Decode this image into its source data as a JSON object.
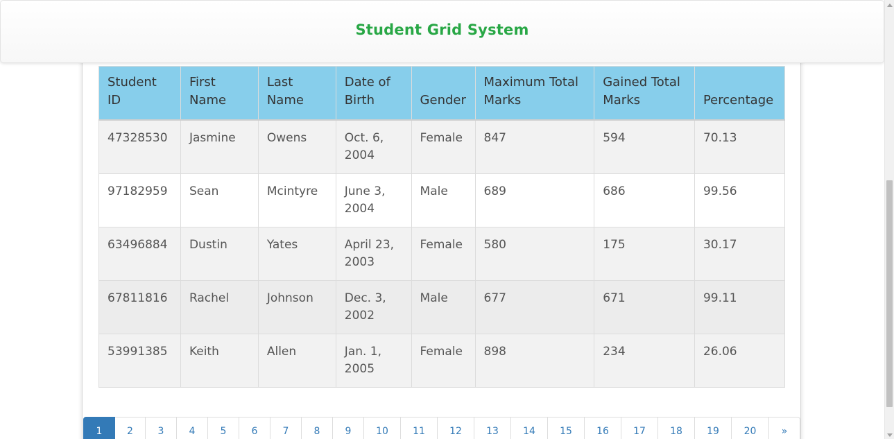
{
  "header": {
    "title": "Student Grid System"
  },
  "table": {
    "columns": [
      "Student ID",
      "First Name",
      "Last Name",
      "Date of Birth",
      "Gender",
      "Maximum Total Marks",
      "Gained Total Marks",
      "Percentage"
    ],
    "rows": [
      [
        "47328530",
        "Jasmine",
        "Owens",
        "Oct. 6, 2004",
        "Female",
        "847",
        "594",
        "70.13"
      ],
      [
        "97182959",
        "Sean",
        "Mcintyre",
        "June 3, 2004",
        "Male",
        "689",
        "686",
        "99.56"
      ],
      [
        "63496884",
        "Dustin",
        "Yates",
        "April 23, 2003",
        "Female",
        "580",
        "175",
        "30.17"
      ],
      [
        "67811816",
        "Rachel",
        "Johnson",
        "Dec. 3, 2002",
        "Male",
        "677",
        "671",
        "99.11"
      ],
      [
        "53991385",
        "Keith",
        "Allen",
        "Jan. 1, 2005",
        "Female",
        "898",
        "234",
        "26.06"
      ]
    ]
  },
  "pagination": {
    "pages": [
      "1",
      "2",
      "3",
      "4",
      "5",
      "6",
      "7",
      "8",
      "9",
      "10",
      "11",
      "12",
      "13",
      "14",
      "15",
      "16",
      "17",
      "18",
      "19",
      "20"
    ],
    "next_label": "»",
    "active": "1"
  },
  "colors": {
    "title": "#28a745",
    "header_row": "#87ceeb",
    "link": "#337ab7"
  }
}
